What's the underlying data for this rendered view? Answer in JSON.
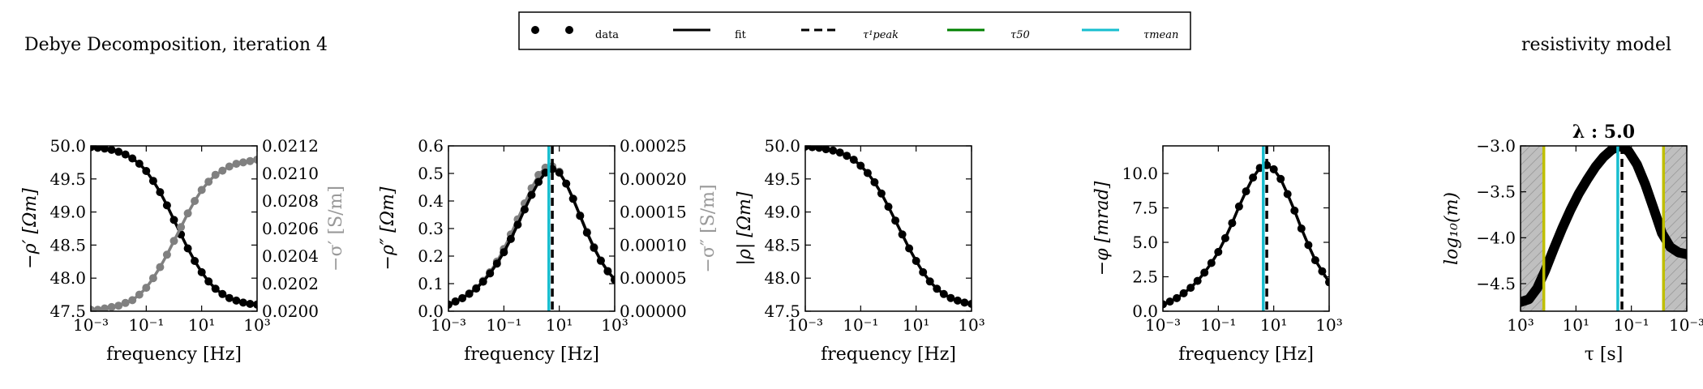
{
  "colors": {
    "data": "#000000",
    "fit": "#000000",
    "sigma_series": "#808080",
    "tau_peak": "#000000",
    "tau_50": "#008000",
    "tau_mean": "#17becf",
    "tau_limit": "#bfbf00",
    "shade": "#bfbfbf"
  },
  "header": {
    "left_title": "Debye Decomposition, iteration 4",
    "right_title": "resistivity model"
  },
  "legend": {
    "placement": "top-center",
    "entries": [
      {
        "key": "data",
        "label": "data",
        "style": "markers"
      },
      {
        "key": "fit",
        "label": "fit",
        "style": "solid"
      },
      {
        "key": "tau_peak",
        "label": "τ¹peak",
        "style": "dashed"
      },
      {
        "key": "tau_50",
        "label": "τ50",
        "style": "solid-green"
      },
      {
        "key": "tau_mean",
        "label": "τmean",
        "style": "solid-cyan"
      }
    ]
  },
  "chart_data": [
    {
      "type": "line",
      "xscale": "log",
      "xlim": [
        0.001,
        1000
      ],
      "xlabel": "frequency [Hz]",
      "ylabel": "−ρ′ [Ωm]",
      "ylim": [
        47.5,
        50.0
      ],
      "yticks": [
        "47.5",
        "48.0",
        "48.5",
        "49.0",
        "49.5",
        "50.0"
      ],
      "xticks": [
        {
          "value": 0.001,
          "label": "10⁻³"
        },
        {
          "value": 0.1,
          "label": "10⁻¹"
        },
        {
          "value": 10,
          "label": "10¹"
        },
        {
          "value": 1000,
          "label": "10³"
        }
      ],
      "secondary_ylabel": "−σ′ [S/m]",
      "secondary_ylim": [
        0.02,
        0.0212
      ],
      "secondary_yticks": [
        "0.0200",
        "0.0202",
        "0.0204",
        "0.0206",
        "0.0208",
        "0.0210",
        "0.0212"
      ],
      "series": [
        {
          "key": "rho_real",
          "color": "#000000",
          "axis": "left",
          "x": [
            0.001,
            0.00178,
            0.00316,
            0.00562,
            0.01,
            0.0178,
            0.0316,
            0.0562,
            0.1,
            0.178,
            0.316,
            0.562,
            1,
            1.78,
            3.16,
            5.62,
            10,
            17.8,
            31.6,
            56.2,
            100,
            178,
            316,
            562,
            1000
          ],
          "y": [
            49.98,
            49.97,
            49.96,
            49.94,
            49.91,
            49.87,
            49.81,
            49.73,
            49.62,
            49.47,
            49.3,
            49.1,
            48.88,
            48.66,
            48.45,
            48.26,
            48.09,
            47.95,
            47.84,
            47.76,
            47.7,
            47.66,
            47.63,
            47.61,
            47.6
          ]
        },
        {
          "key": "sigma_real",
          "color": "#808080",
          "axis": "right",
          "x": [
            0.001,
            0.00178,
            0.00316,
            0.00562,
            0.01,
            0.0178,
            0.0316,
            0.0562,
            0.1,
            0.178,
            0.316,
            0.562,
            1,
            1.78,
            3.16,
            5.62,
            10,
            17.8,
            31.6,
            56.2,
            100,
            178,
            316,
            562,
            1000
          ],
          "y": [
            0.02001,
            0.02001,
            0.02002,
            0.02003,
            0.02004,
            0.02006,
            0.02008,
            0.02012,
            0.02017,
            0.02024,
            0.02032,
            0.02041,
            0.02051,
            0.02061,
            0.02071,
            0.0208,
            0.02088,
            0.02094,
            0.02099,
            0.02102,
            0.02105,
            0.02107,
            0.02108,
            0.02109,
            0.0211
          ]
        }
      ]
    },
    {
      "type": "line",
      "xscale": "log",
      "xlim": [
        0.001,
        1000
      ],
      "xlabel": "frequency [Hz]",
      "ylabel": "−ρ″ [Ωm]",
      "ylim": [
        0.0,
        0.6
      ],
      "yticks": [
        "0.0",
        "0.1",
        "0.2",
        "0.3",
        "0.4",
        "0.5",
        "0.6"
      ],
      "xticks": [
        {
          "value": 0.001,
          "label": "10⁻³"
        },
        {
          "value": 0.1,
          "label": "10⁻¹"
        },
        {
          "value": 10,
          "label": "10¹"
        },
        {
          "value": 1000,
          "label": "10³"
        }
      ],
      "secondary_ylabel": "−σ″ [S/m]",
      "secondary_ylim": [
        0.0,
        0.00025
      ],
      "secondary_yticks": [
        "0.00000",
        "0.00005",
        "0.00010",
        "0.00015",
        "0.00020",
        "0.00025"
      ],
      "vlines": [
        {
          "key": "tau_mean",
          "x": 4.2,
          "color": "#17becf",
          "style": "solid"
        },
        {
          "key": "tau_peak",
          "x": 5.6,
          "color": "#000000",
          "style": "dashed"
        }
      ],
      "series": [
        {
          "key": "sigma_imag",
          "color": "#808080",
          "axis": "right",
          "x": [
            0.001,
            0.00178,
            0.00316,
            0.00562,
            0.01,
            0.0178,
            0.0316,
            0.0562,
            0.1,
            0.178,
            0.316,
            0.562,
            1,
            1.78,
            3.16,
            5.62,
            10,
            17.8,
            31.6,
            56.2,
            100,
            178,
            316,
            562,
            1000
          ],
          "y": [
            1e-05,
            1.5e-05,
            2e-05,
            2.7e-05,
            3.5e-05,
            4.6e-05,
            5.9e-05,
            7.5e-05,
            9.4e-05,
            0.000116,
            0.000139,
            0.000163,
            0.000186,
            0.000206,
            0.000217,
            0.000219,
            0.000211,
            0.000193,
            0.00017,
            0.000145,
            0.00012,
            9.7e-05,
            7.7e-05,
            6.1e-05,
            4.8e-05
          ]
        },
        {
          "key": "rho_imag",
          "color": "#000000",
          "axis": "left",
          "x": [
            0.001,
            0.00178,
            0.00316,
            0.00562,
            0.01,
            0.0178,
            0.0316,
            0.0562,
            0.1,
            0.178,
            0.316,
            0.562,
            1,
            1.78,
            3.16,
            5.62,
            10,
            17.8,
            31.6,
            56.2,
            100,
            178,
            316,
            562,
            1000
          ],
          "y": [
            0.024,
            0.035,
            0.047,
            0.063,
            0.082,
            0.107,
            0.137,
            0.173,
            0.214,
            0.262,
            0.314,
            0.369,
            0.422,
            0.469,
            0.503,
            0.516,
            0.503,
            0.463,
            0.408,
            0.346,
            0.285,
            0.23,
            0.183,
            0.145,
            0.114
          ]
        }
      ]
    },
    {
      "type": "line",
      "xscale": "log",
      "xlim": [
        0.001,
        1000
      ],
      "xlabel": "frequency [Hz]",
      "ylabel": "|ρ| [Ωm]",
      "ylim": [
        47.5,
        50.0
      ],
      "yticks": [
        "47.5",
        "48.0",
        "48.5",
        "49.0",
        "49.5",
        "50.0"
      ],
      "xticks": [
        {
          "value": 0.001,
          "label": "10⁻³"
        },
        {
          "value": 0.1,
          "label": "10⁻¹"
        },
        {
          "value": 10,
          "label": "10¹"
        },
        {
          "value": 1000,
          "label": "10³"
        }
      ],
      "series": [
        {
          "key": "rho_abs",
          "color": "#000000",
          "axis": "left",
          "x": [
            0.001,
            0.00178,
            0.00316,
            0.00562,
            0.01,
            0.0178,
            0.0316,
            0.0562,
            0.1,
            0.178,
            0.316,
            0.562,
            1,
            1.78,
            3.16,
            5.62,
            10,
            17.8,
            31.6,
            56.2,
            100,
            178,
            316,
            562,
            1000
          ],
          "y": [
            49.99,
            49.98,
            49.97,
            49.95,
            49.93,
            49.9,
            49.85,
            49.79,
            49.7,
            49.59,
            49.45,
            49.28,
            49.08,
            48.87,
            48.66,
            48.45,
            48.26,
            48.09,
            47.95,
            47.84,
            47.76,
            47.7,
            47.66,
            47.63,
            47.61
          ]
        }
      ]
    },
    {
      "type": "line",
      "xscale": "log",
      "xlim": [
        0.001,
        1000
      ],
      "xlabel": "frequency [Hz]",
      "ylabel": "−φ [mrad]",
      "ylim": [
        0.0,
        12.0
      ],
      "yticks": [
        "0.0",
        "2.5",
        "5.0",
        "7.5",
        "10.0"
      ],
      "ytick_values": [
        0.0,
        2.5,
        5.0,
        7.5,
        10.0
      ],
      "xticks": [
        {
          "value": 0.001,
          "label": "10⁻³"
        },
        {
          "value": 0.1,
          "label": "10⁻¹"
        },
        {
          "value": 10,
          "label": "10¹"
        },
        {
          "value": 1000,
          "label": "10³"
        }
      ],
      "vlines": [
        {
          "key": "tau_mean",
          "x": 4.2,
          "color": "#17becf",
          "style": "solid"
        },
        {
          "key": "tau_peak",
          "x": 5.6,
          "color": "#000000",
          "style": "dashed"
        }
      ],
      "series": [
        {
          "key": "phase",
          "color": "#000000",
          "axis": "left",
          "x": [
            0.001,
            0.00178,
            0.00316,
            0.00562,
            0.01,
            0.0178,
            0.0316,
            0.0562,
            0.1,
            0.178,
            0.316,
            0.562,
            1,
            1.78,
            3.16,
            5.62,
            10,
            17.8,
            31.6,
            56.2,
            100,
            178,
            316,
            562,
            1000
          ],
          "y": [
            0.5,
            0.7,
            0.95,
            1.3,
            1.7,
            2.2,
            2.8,
            3.5,
            4.3,
            5.3,
            6.4,
            7.6,
            8.7,
            9.7,
            10.4,
            10.6,
            10.3,
            9.6,
            8.5,
            7.3,
            6.0,
            4.8,
            3.7,
            2.9,
            2.1
          ]
        }
      ]
    },
    {
      "type": "line",
      "xscale": "log",
      "xlabel": "τ [s]",
      "ylabel": "log₁₀(m)",
      "title": "λ : 5.0",
      "ylim": [
        -4.8,
        -3.0
      ],
      "yticks": [
        "−4.5",
        "−4.0",
        "−3.5",
        "−3.0"
      ],
      "ytick_values": [
        -4.5,
        -4.0,
        -3.5,
        -3.0
      ],
      "xticks": [
        {
          "pos": 0.0,
          "label": "10³"
        },
        {
          "pos": 0.3333,
          "label": "10¹"
        },
        {
          "pos": 0.6667,
          "label": "10⁻¹"
        },
        {
          "pos": 1.0,
          "label": "10⁻³"
        }
      ],
      "shaded_regions": [
        [
          0.0,
          0.14
        ],
        [
          0.86,
          1.0
        ]
      ],
      "vlines": [
        {
          "key": "tau_limit_left",
          "pos": 0.14,
          "color": "#bfbf00",
          "style": "solid"
        },
        {
          "key": "tau_limit_right",
          "pos": 0.86,
          "color": "#bfbf00",
          "style": "solid"
        },
        {
          "key": "tau_mean",
          "pos": 0.585,
          "color": "#17becf",
          "style": "solid"
        },
        {
          "key": "tau_peak",
          "pos": 0.61,
          "color": "#000000",
          "style": "dashed"
        }
      ],
      "series": [
        {
          "key": "relaxation_distribution",
          "color": "#000000",
          "axis": "left",
          "pos": [
            0.0,
            0.05,
            0.1,
            0.15,
            0.2,
            0.25,
            0.3,
            0.35,
            0.4,
            0.45,
            0.5,
            0.55,
            0.6,
            0.65,
            0.7,
            0.75,
            0.8,
            0.85,
            0.9,
            0.95,
            1.0
          ],
          "y": [
            -4.7,
            -4.67,
            -4.55,
            -4.35,
            -4.12,
            -3.9,
            -3.7,
            -3.52,
            -3.37,
            -3.23,
            -3.12,
            -3.04,
            -3.0,
            -3.06,
            -3.2,
            -3.42,
            -3.68,
            -3.95,
            -4.1,
            -4.16,
            -4.18
          ]
        }
      ]
    }
  ]
}
